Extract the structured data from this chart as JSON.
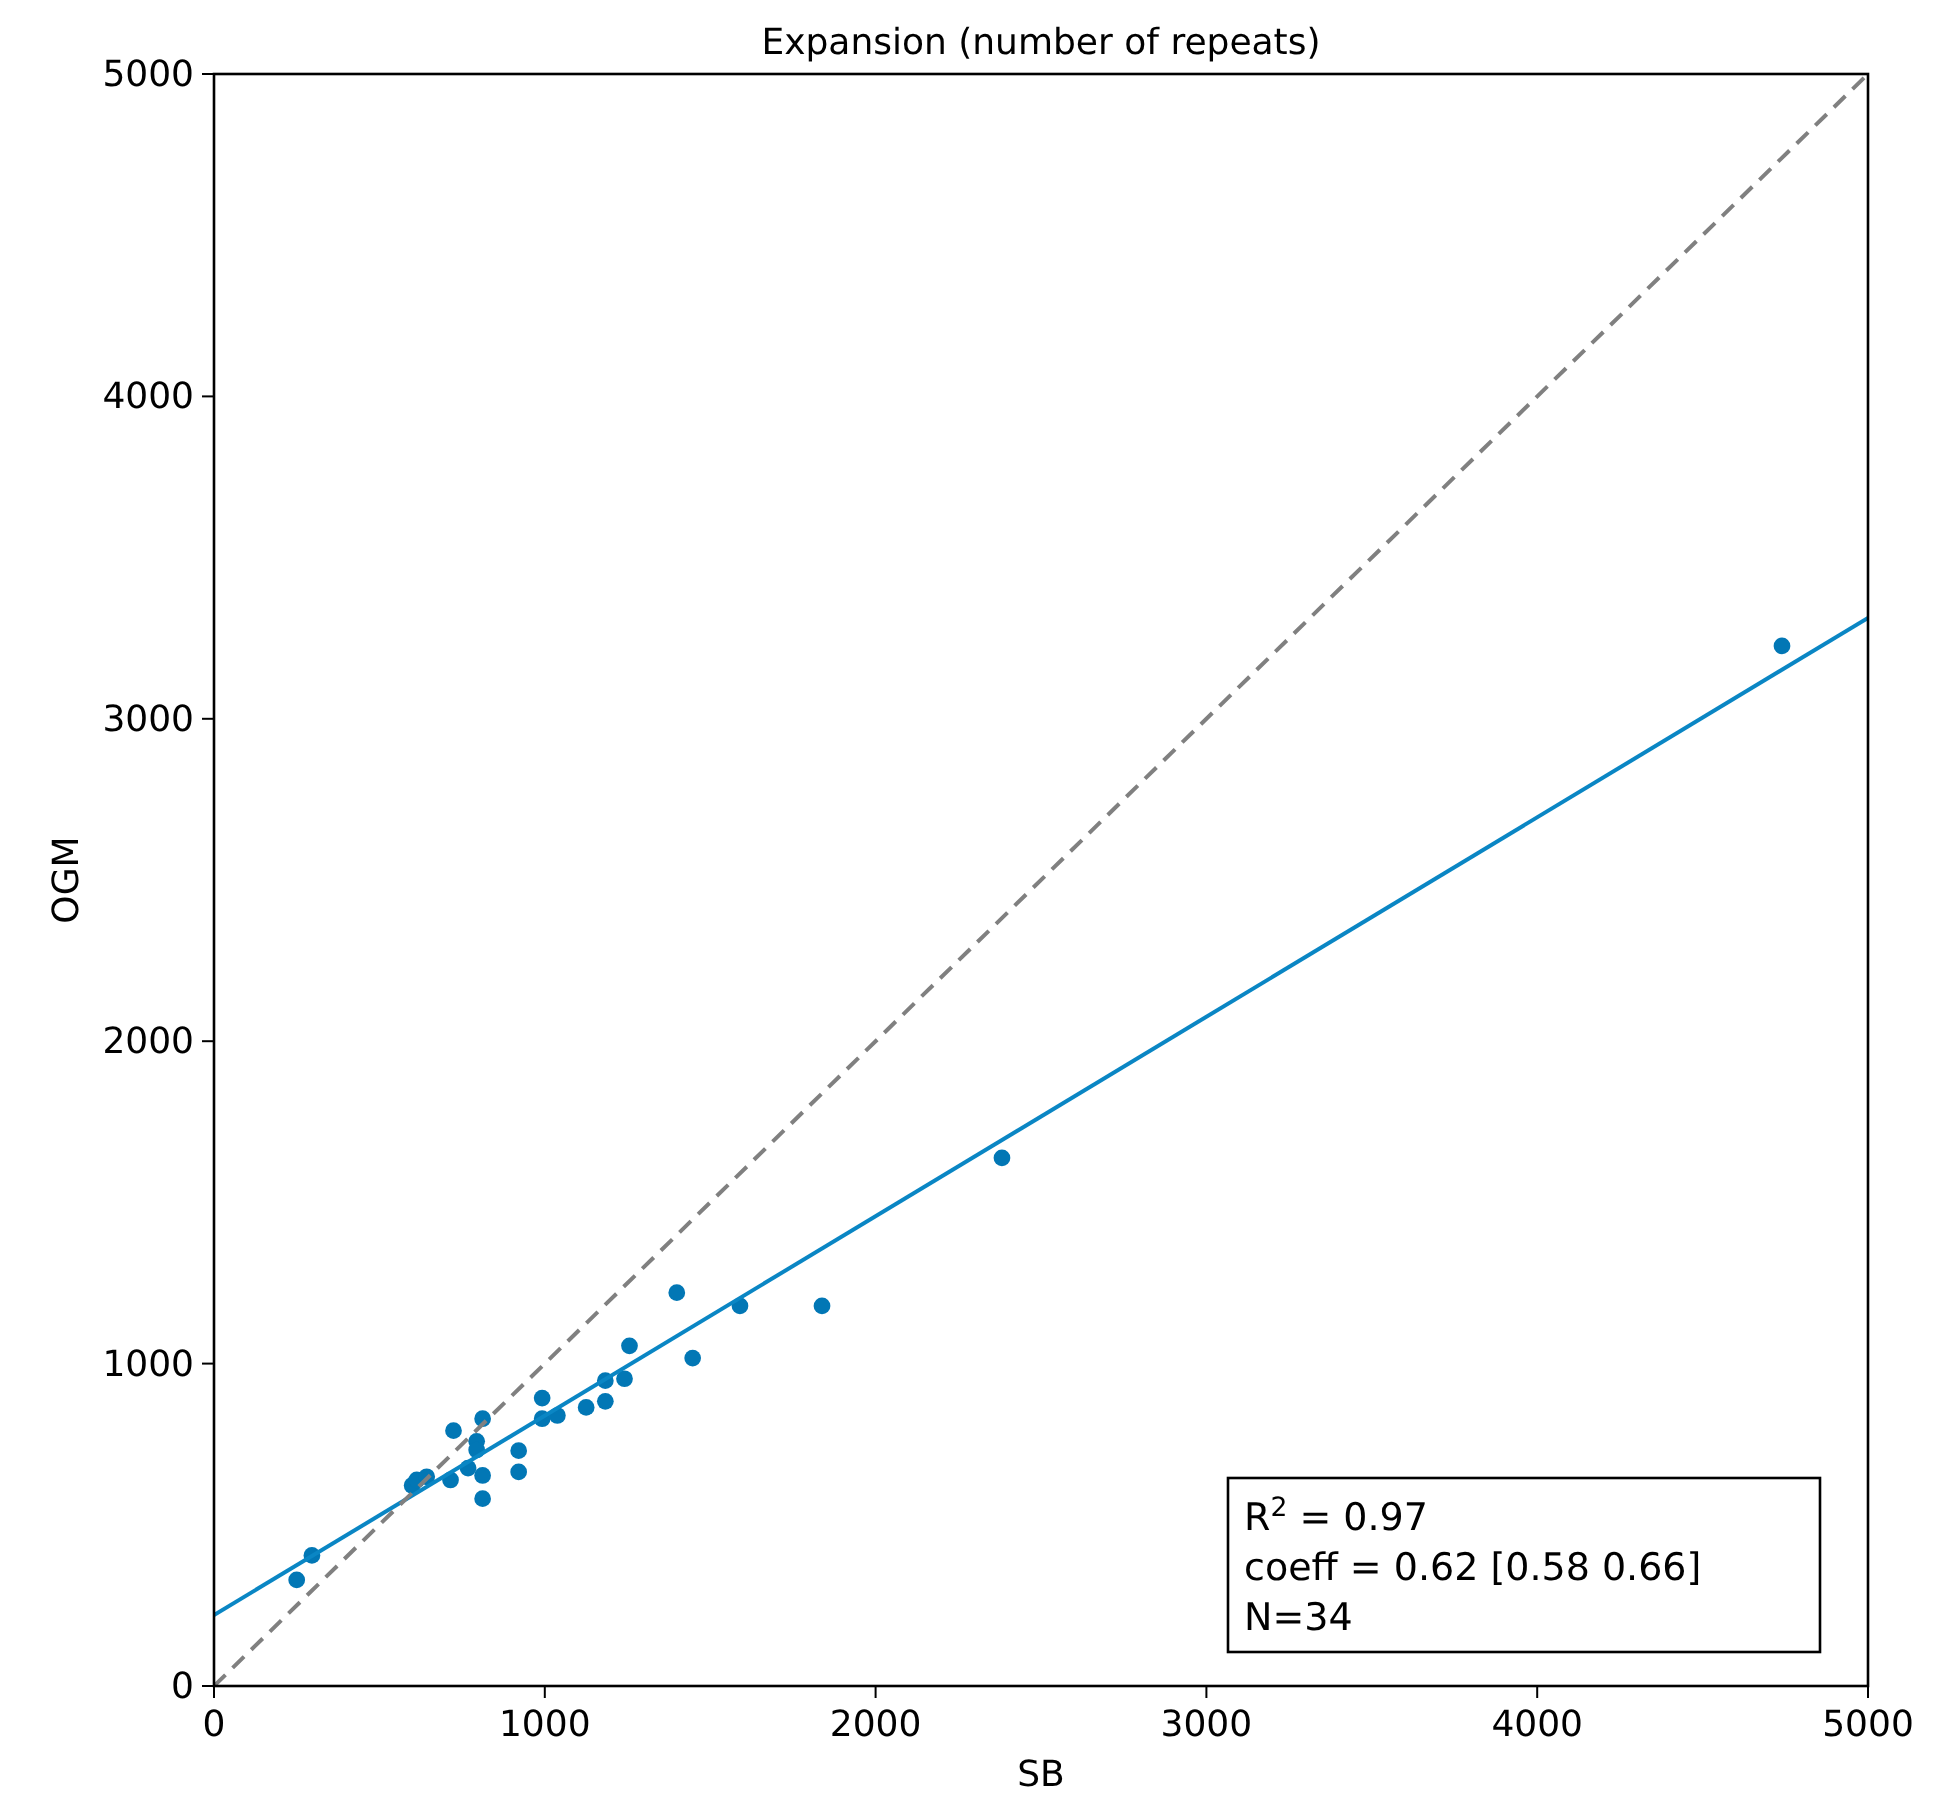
{
  "chart_data": {
    "type": "scatter",
    "title": "Expansion (number of repeats)",
    "xlabel": "SB",
    "ylabel": "OGM",
    "xlim": [
      0,
      5000
    ],
    "xticks": [
      0,
      1000,
      2000,
      3000,
      4000,
      5000
    ],
    "ylim": [
      0,
      5000
    ],
    "yticks": [
      0,
      1000,
      2000,
      3000,
      4000,
      5000
    ],
    "grid": false,
    "series": [
      {
        "color": "#0277b5",
        "marker": "circle",
        "x": [
          250,
          296,
          599,
          613,
          643,
          715,
          724,
          768,
          794,
          794,
          812,
          812,
          812,
          921,
          921,
          992,
          992,
          1038,
          1125,
          1183,
          1183,
          1241,
          1256,
          1399,
          1447,
          1590,
          1838,
          2382,
          4740
        ],
        "values": [
          329,
          405,
          622,
          639,
          649,
          639,
          792,
          676,
          759,
          732,
          829,
          653,
          581,
          730,
          664,
          893,
          829,
          839,
          864,
          947,
          883,
          953,
          1055,
          1220,
          1017,
          1179,
          1179,
          1638,
          3226
        ]
      },
      {
        "type": "line",
        "color": "#0a86c4",
        "line_style": "solid",
        "x": [
          0,
          5000
        ],
        "values": [
          220,
          3313
        ]
      },
      {
        "type": "line",
        "color": "#808080",
        "line_style": "dashed",
        "x": [
          0,
          5000
        ],
        "values": [
          0,
          5000
        ]
      }
    ],
    "annotations": [
      "R$^{2}$ = 0.97",
      "coeff = 0.62 [0.58 0.66]",
      "N=34"
    ]
  }
}
